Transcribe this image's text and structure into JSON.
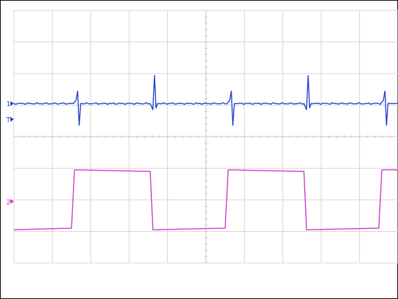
{
  "chart_data": {
    "type": "line",
    "title": "",
    "xlabel": "",
    "ylabel": "",
    "grid": true,
    "grid_divisions": {
      "x": 10,
      "y": 8
    },
    "xlim": [
      0,
      10
    ],
    "ylim": [
      -4,
      4
    ],
    "trigger_marker": {
      "label": "T",
      "level": 0.55,
      "color": "#1f3fcf"
    },
    "series": [
      {
        "marker": "1",
        "color": "#1f3fcf",
        "baseline": 1.05,
        "points": [
          [
            0,
            1.05
          ],
          [
            1.55,
            1.05
          ],
          [
            1.62,
            1.15
          ],
          [
            1.66,
            1.45
          ],
          [
            1.7,
            0.35
          ],
          [
            1.74,
            1.05
          ],
          [
            3.55,
            1.05
          ],
          [
            3.62,
            0.85
          ],
          [
            3.66,
            1.95
          ],
          [
            3.7,
            0.9
          ],
          [
            3.74,
            1.05
          ],
          [
            5.55,
            1.05
          ],
          [
            5.62,
            1.15
          ],
          [
            5.66,
            1.45
          ],
          [
            5.7,
            0.35
          ],
          [
            5.74,
            1.05
          ],
          [
            7.55,
            1.05
          ],
          [
            7.62,
            0.85
          ],
          [
            7.66,
            1.95
          ],
          [
            7.7,
            0.9
          ],
          [
            7.74,
            1.05
          ],
          [
            9.55,
            1.05
          ],
          [
            9.62,
            1.15
          ],
          [
            9.66,
            1.45
          ],
          [
            9.7,
            0.35
          ],
          [
            9.74,
            1.05
          ],
          [
            10,
            1.05
          ]
        ]
      },
      {
        "marker": "2",
        "color": "#cc33cc",
        "points": [
          [
            0,
            -2.95
          ],
          [
            1.5,
            -2.9
          ],
          [
            1.58,
            -1.05
          ],
          [
            3.55,
            -1.1
          ],
          [
            3.62,
            -2.95
          ],
          [
            5.5,
            -2.9
          ],
          [
            5.58,
            -1.05
          ],
          [
            7.55,
            -1.1
          ],
          [
            7.62,
            -2.95
          ],
          [
            9.5,
            -2.9
          ],
          [
            9.58,
            -1.05
          ],
          [
            10,
            -1.05
          ]
        ]
      }
    ]
  }
}
